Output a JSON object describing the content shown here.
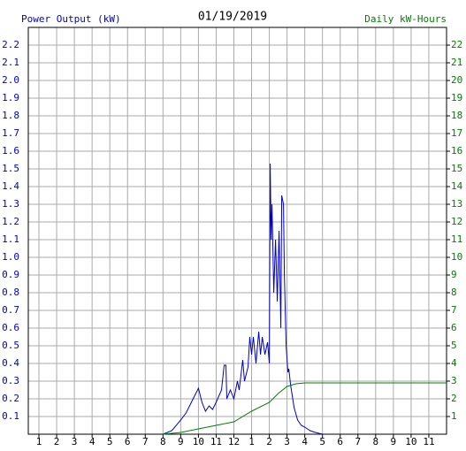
{
  "chart_data": {
    "type": "line",
    "title": "01/19/2019",
    "ylabel": "Power Output (kW)",
    "y2label": "Daily kW-Hours",
    "ylabel_color": "#0000cc",
    "y2label_color": "#008000",
    "xlim": [
      0.4,
      24
    ],
    "ylim": [
      0,
      2.3
    ],
    "y2lim": [
      0,
      23
    ],
    "grid": true,
    "xticks": [
      1,
      2,
      3,
      4,
      5,
      6,
      7,
      8,
      9,
      10,
      11,
      12,
      {
        "value": 13,
        "label": "1"
      },
      {
        "value": 14,
        "label": "2"
      },
      {
        "value": 15,
        "label": "3"
      },
      {
        "value": 16,
        "label": "4"
      },
      {
        "value": 17,
        "label": "5"
      },
      {
        "value": 18,
        "label": "6"
      },
      {
        "value": 19,
        "label": "7"
      },
      {
        "value": 20,
        "label": "8"
      },
      {
        "value": 21,
        "label": "9"
      },
      {
        "value": 22,
        "label": "10"
      },
      {
        "value": 23,
        "label": "11"
      }
    ],
    "yticks": [
      0.1,
      0.2,
      0.3,
      0.4,
      0.5,
      0.6,
      0.7,
      0.8,
      0.9,
      {
        "value": 1,
        "label": "1.0"
      },
      1.1,
      1.2,
      1.3,
      1.4,
      1.5,
      1.6,
      1.7,
      1.8,
      1.9,
      {
        "value": 2,
        "label": "2.0"
      },
      2.1,
      2.2
    ],
    "y2ticks": [
      1,
      2,
      3,
      4,
      5,
      6,
      7,
      8,
      9,
      10,
      11,
      12,
      13,
      14,
      15,
      16,
      17,
      18,
      19,
      20,
      21,
      22
    ],
    "series": [
      {
        "color": "#0000cc",
        "x": [
          8,
          8.5,
          9,
          9.3,
          9.6,
          9.8,
          10,
          10.2,
          10.4,
          10.6,
          10.8,
          11,
          11.3,
          11.45,
          11.55,
          11.6,
          11.8,
          12,
          12.2,
          12.3,
          12.5,
          12.6,
          12.8,
          12.9,
          13,
          13.1,
          13.25,
          13.4,
          13.5,
          13.6,
          13.75,
          13.9,
          14,
          14.05,
          14.1,
          14.15,
          14.25,
          14.35,
          14.45,
          14.55,
          14.65,
          14.7,
          14.8,
          14.85,
          14.95,
          15.05,
          15.1,
          15.2,
          15.4,
          15.6,
          15.8,
          16,
          16.3,
          16.6,
          17
        ],
        "values": [
          0,
          0.02,
          0.08,
          0.12,
          0.18,
          0.22,
          0.26,
          0.18,
          0.13,
          0.16,
          0.14,
          0.18,
          0.25,
          0.39,
          0.39,
          0.2,
          0.25,
          0.2,
          0.3,
          0.25,
          0.42,
          0.3,
          0.38,
          0.55,
          0.45,
          0.55,
          0.4,
          0.58,
          0.45,
          0.55,
          0.45,
          0.52,
          0.4,
          1.53,
          1.1,
          1.3,
          0.8,
          1.1,
          0.75,
          1.15,
          0.6,
          1.35,
          1.3,
          0.9,
          0.5,
          0.35,
          0.37,
          0.28,
          0.15,
          0.08,
          0.05,
          0.04,
          0.02,
          0.01,
          0
        ]
      },
      {
        "color": "#008000",
        "axis": "y2",
        "x": [
          8,
          9,
          10,
          11,
          12,
          13,
          14,
          14.5,
          15,
          15.5,
          16,
          24
        ],
        "values": [
          0,
          0.1,
          0.3,
          0.5,
          0.7,
          1.3,
          1.8,
          2.3,
          2.7,
          2.85,
          2.9,
          2.9
        ]
      }
    ]
  }
}
